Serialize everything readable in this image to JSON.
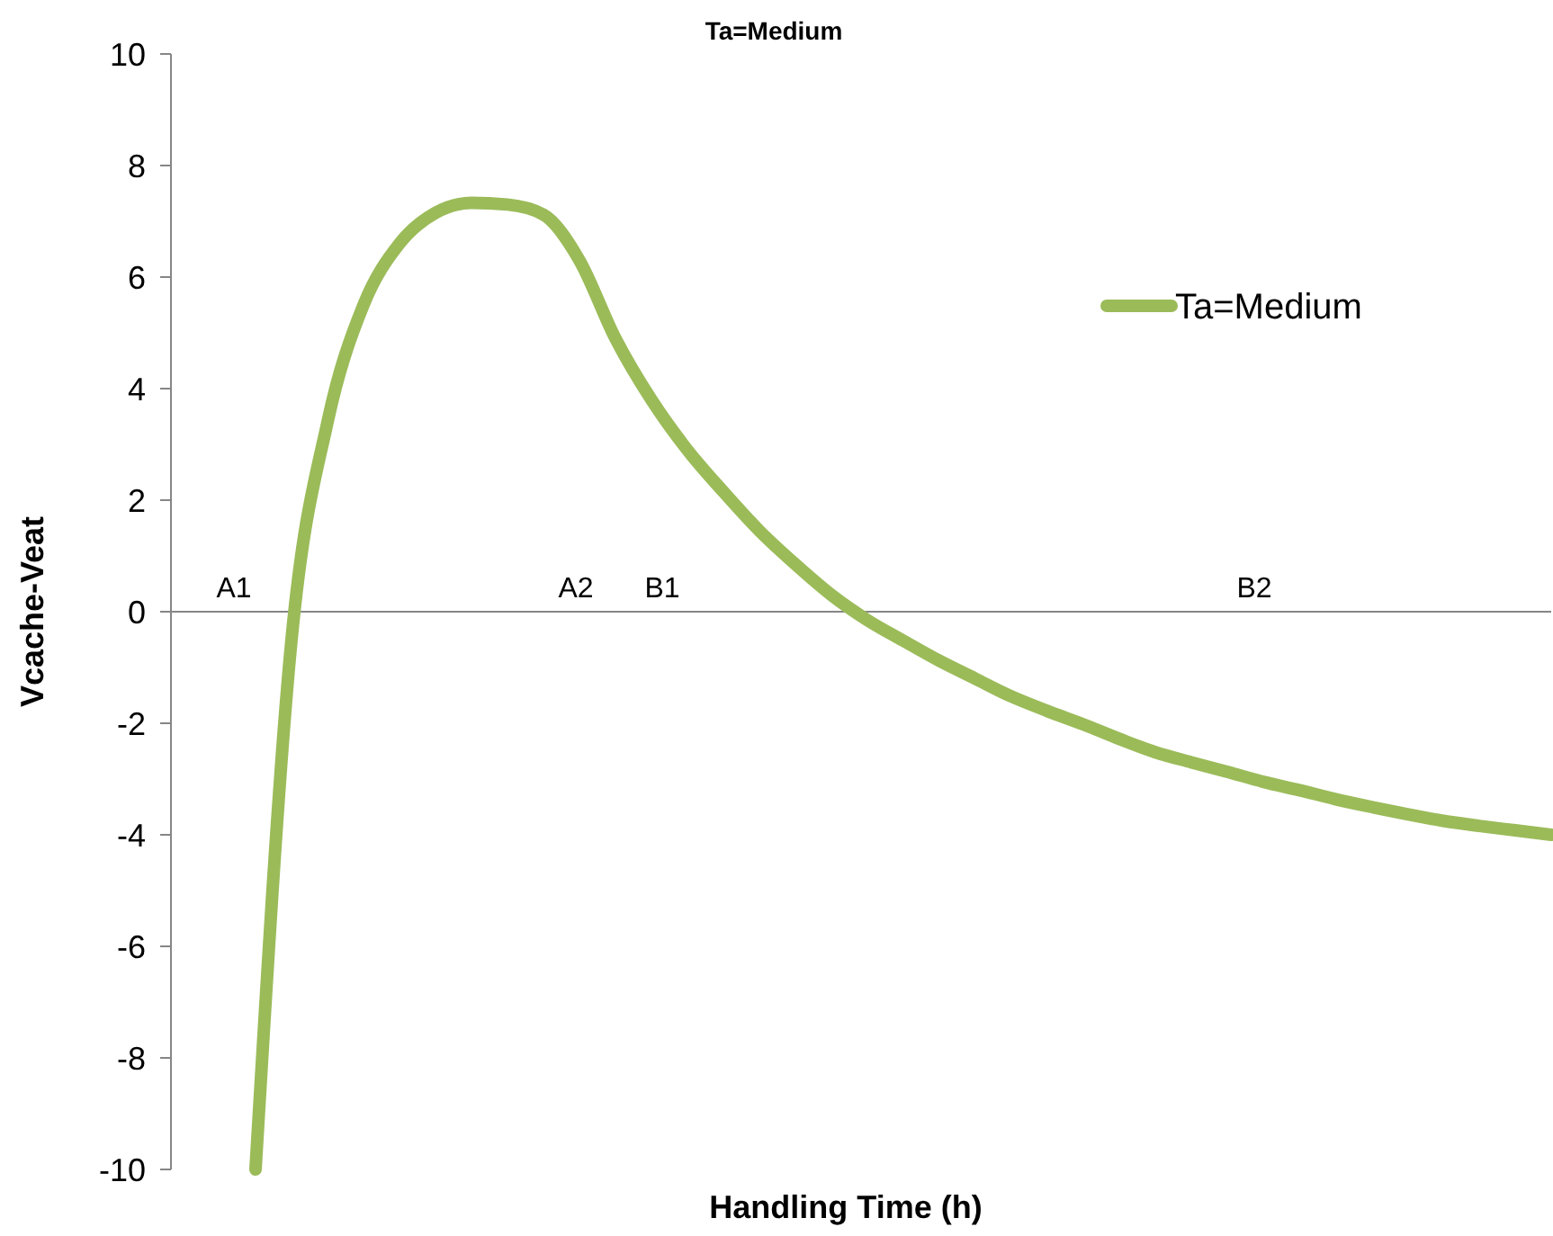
{
  "chart_data": {
    "type": "line",
    "title": "Ta=Medium",
    "xlabel": "Handling Time (h)",
    "ylabel": "Vcache-Veat",
    "categories": [
      null,
      null,
      null,
      null,
      null,
      null,
      null,
      null,
      null,
      null,
      null,
      null,
      null,
      null,
      null,
      null,
      null,
      null,
      null,
      null,
      null,
      null,
      null,
      null,
      null,
      null,
      null,
      null,
      null,
      null,
      null,
      null,
      null,
      null,
      null,
      null,
      null
    ],
    "series": [
      {
        "name": "Ta=Medium",
        "color": "#9bbb59",
        "values": [
          -10,
          -0.5,
          3.4,
          5.5,
          6.6,
          7.15,
          7.33,
          7.3,
          7.12,
          6.3,
          4.9,
          3.8,
          2.9,
          2.15,
          1.45,
          0.85,
          0.3,
          -0.15,
          -0.52,
          -0.88,
          -1.2,
          -1.52,
          -1.78,
          -2.02,
          -2.28,
          -2.52,
          -2.7,
          -2.87,
          -3.05,
          -3.2,
          -3.36,
          -3.5,
          -3.63,
          -3.75,
          -3.84,
          -3.92,
          -4
        ]
      }
    ],
    "ylim": [
      -10,
      10
    ],
    "yticks": [
      -10,
      -8,
      -6,
      -4,
      -2,
      0,
      2,
      4,
      6,
      8,
      10
    ],
    "annotations": [
      "A1",
      "A2",
      "B1",
      "B2"
    ],
    "legend": "right",
    "line_style": "solid"
  }
}
